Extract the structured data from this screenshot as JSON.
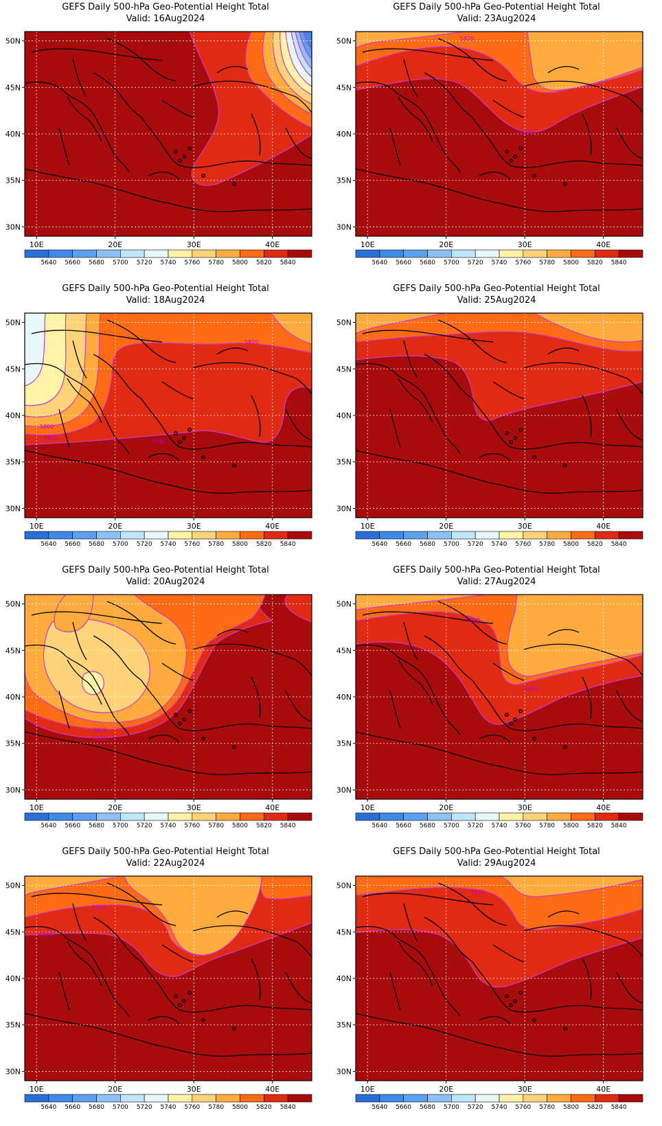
{
  "colors": {
    "5640": "#2a6fd8",
    "5660": "#3f8ae6",
    "5680": "#5da0ef",
    "5700": "#8ec0f5",
    "5720": "#bfe6fb",
    "5740": "#e8f8f8",
    "5760": "#fff3a8",
    "5780": "#ffd37a",
    "5800": "#ffab3d",
    "5820": "#ff6a14",
    "5840": "#e02a14",
    "above": "#a80b0b",
    "contour": "#c83ac8",
    "grid": "#ffffff"
  },
  "colorbar": {
    "levels": [
      "5640",
      "5660",
      "5680",
      "5700",
      "5720",
      "5740",
      "5760",
      "5780",
      "5800",
      "5820",
      "5840"
    ]
  },
  "axes": {
    "lat_labels": [
      "50N",
      "45N",
      "40N",
      "35N",
      "30N"
    ],
    "lon_labels": [
      "10E",
      "20E",
      "30E",
      "40E"
    ]
  },
  "panels": [
    {
      "id": "p1",
      "title": "GEFS Daily 500-hPa Geo-Potential Height Total",
      "valid": "Valid: 16Aug2024",
      "contour_labels": []
    },
    {
      "id": "p2",
      "title": "GEFS Daily 500-hPa Geo-Potential Height Total",
      "valid": "Valid: 23Aug2024",
      "contour_labels": [
        "5820",
        "5840"
      ]
    },
    {
      "id": "p3",
      "title": "GEFS Daily 500-hPa Geo-Potential Height Total",
      "valid": "Valid: 18Aug2024",
      "contour_labels": [
        "5820",
        "5800",
        "5820",
        "5840"
      ]
    },
    {
      "id": "p4",
      "title": "GEFS Daily 500-hPa Geo-Potential Height Total",
      "valid": "Valid: 25Aug2024",
      "contour_labels": []
    },
    {
      "id": "p5",
      "title": "GEFS Daily 500-hPa Geo-Potential Height Total",
      "valid": "Valid: 20Aug2024",
      "contour_labels": [
        "5820",
        "5840"
      ]
    },
    {
      "id": "p6",
      "title": "GEFS Daily 500-hPa Geo-Potential Height Total",
      "valid": "Valid: 27Aug2024",
      "contour_labels": [
        "5820",
        "5840"
      ]
    },
    {
      "id": "p7",
      "title": "GEFS Daily 500-hPa Geo-Potential Height Total",
      "valid": "Valid: 22Aug2024",
      "contour_labels": [
        "5820",
        "5840"
      ]
    },
    {
      "id": "p8",
      "title": "GEFS Daily 500-hPa Geo-Potential Height Total",
      "valid": "Valid: 29Aug2024",
      "contour_labels": [
        "5820"
      ]
    }
  ]
}
